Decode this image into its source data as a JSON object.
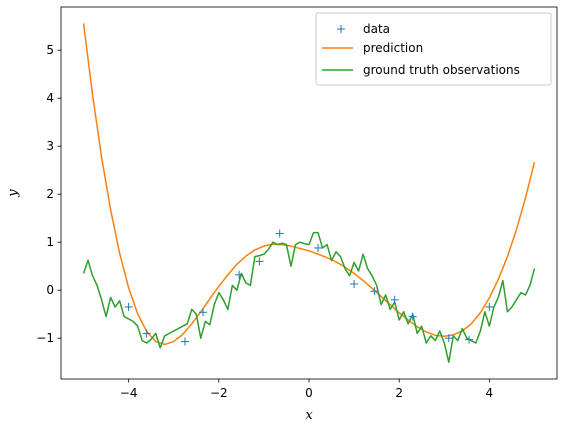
{
  "chart_data": {
    "type": "line",
    "xlabel": "x",
    "ylabel": "y",
    "xlim": [
      -5.5,
      5.5
    ],
    "ylim": [
      -1.85,
      5.9
    ],
    "xticks": [
      -4,
      -2,
      0,
      2,
      4
    ],
    "yticks": [
      -1,
      0,
      1,
      2,
      3,
      4,
      5
    ],
    "legend": {
      "placement": "top-right",
      "entries": [
        "data",
        "prediction",
        "ground truth observations"
      ]
    },
    "colors": {
      "data": "#1f77b4",
      "prediction": "#ff7f0e",
      "ground_truth": "#2ca02c"
    },
    "series": [
      {
        "name": "data",
        "style": "marker-plus",
        "x": [
          -4.0,
          -3.6,
          -2.75,
          -2.35,
          -1.55,
          -1.1,
          -0.65,
          0.2,
          1.0,
          1.45,
          1.9,
          2.3,
          3.1,
          3.55,
          4.0
        ],
        "y": [
          -0.35,
          -0.9,
          -1.07,
          -0.46,
          0.32,
          0.6,
          1.18,
          0.88,
          0.13,
          -0.02,
          -0.2,
          -0.55,
          -1.0,
          -1.03,
          -0.35
        ]
      },
      {
        "name": "prediction",
        "style": "line",
        "x": [
          -5.0,
          -4.8,
          -4.6,
          -4.4,
          -4.2,
          -4.0,
          -3.8,
          -3.6,
          -3.4,
          -3.2,
          -3.0,
          -2.8,
          -2.6,
          -2.4,
          -2.2,
          -2.0,
          -1.8,
          -1.6,
          -1.4,
          -1.2,
          -1.0,
          -0.8,
          -0.6,
          -0.4,
          -0.2,
          0.0,
          0.2,
          0.4,
          0.6,
          0.8,
          1.0,
          1.2,
          1.4,
          1.6,
          1.8,
          2.0,
          2.2,
          2.4,
          2.6,
          2.8,
          3.0,
          3.2,
          3.4,
          3.6,
          3.8,
          4.0,
          4.2,
          4.4,
          4.6,
          4.8,
          5.0
        ],
        "y": [
          5.56,
          4.07,
          2.77,
          1.68,
          0.77,
          0.05,
          -0.49,
          -0.86,
          -1.07,
          -1.13,
          -1.07,
          -0.92,
          -0.7,
          -0.45,
          -0.18,
          0.08,
          0.32,
          0.54,
          0.71,
          0.84,
          0.92,
          0.96,
          0.95,
          0.92,
          0.87,
          0.82,
          0.75,
          0.68,
          0.59,
          0.48,
          0.35,
          0.2,
          0.04,
          -0.13,
          -0.3,
          -0.47,
          -0.62,
          -0.76,
          -0.87,
          -0.94,
          -0.96,
          -0.93,
          -0.85,
          -0.7,
          -0.47,
          -0.16,
          0.23,
          0.7,
          1.26,
          1.92,
          2.67
        ]
      },
      {
        "name": "ground truth observations",
        "style": "line",
        "x": [
          -5.0,
          -4.9,
          -4.8,
          -4.7,
          -4.6,
          -4.5,
          -4.4,
          -4.3,
          -4.2,
          -4.1,
          -4.0,
          -3.9,
          -3.8,
          -3.7,
          -3.6,
          -3.5,
          -3.4,
          -3.3,
          -3.2,
          -3.1,
          -3.0,
          -2.9,
          -2.8,
          -2.7,
          -2.6,
          -2.5,
          -2.4,
          -2.3,
          -2.2,
          -2.1,
          -2.0,
          -1.9,
          -1.8,
          -1.7,
          -1.6,
          -1.5,
          -1.4,
          -1.3,
          -1.2,
          -1.1,
          -1.0,
          -0.9,
          -0.8,
          -0.7,
          -0.6,
          -0.5,
          -0.4,
          -0.3,
          -0.2,
          -0.1,
          0.0,
          0.1,
          0.2,
          0.3,
          0.4,
          0.5,
          0.6,
          0.7,
          0.8,
          0.9,
          1.0,
          1.1,
          1.2,
          1.3,
          1.4,
          1.5,
          1.6,
          1.7,
          1.8,
          1.9,
          2.0,
          2.1,
          2.2,
          2.3,
          2.4,
          2.5,
          2.6,
          2.7,
          2.8,
          2.9,
          3.0,
          3.1,
          3.2,
          3.3,
          3.4,
          3.5,
          3.6,
          3.7,
          3.8,
          3.9,
          4.0,
          4.1,
          4.2,
          4.3,
          4.4,
          4.5,
          4.6,
          4.7,
          4.8,
          4.9,
          5.0
        ],
        "y": [
          0.35,
          0.62,
          0.3,
          0.1,
          -0.2,
          -0.55,
          -0.15,
          -0.35,
          -0.22,
          -0.55,
          -0.6,
          -0.65,
          -0.75,
          -1.05,
          -1.1,
          -1.02,
          -0.9,
          -1.2,
          -0.95,
          -0.9,
          -0.85,
          -0.8,
          -0.75,
          -0.7,
          -0.4,
          -0.5,
          -1.0,
          -0.65,
          -0.72,
          -0.3,
          -0.05,
          -0.2,
          -0.4,
          0.1,
          0.0,
          0.35,
          0.15,
          0.1,
          0.7,
          0.72,
          0.75,
          0.85,
          1.0,
          0.95,
          0.98,
          0.95,
          0.5,
          0.95,
          1.0,
          0.97,
          0.95,
          1.2,
          1.2,
          0.88,
          0.95,
          0.62,
          0.8,
          0.7,
          0.45,
          0.3,
          0.58,
          0.4,
          0.75,
          0.45,
          0.3,
          0.1,
          -0.3,
          -0.1,
          -0.4,
          -0.25,
          -0.62,
          -0.45,
          -0.7,
          -0.5,
          -0.9,
          -0.75,
          -1.1,
          -0.95,
          -1.05,
          -0.85,
          -1.1,
          -1.5,
          -0.95,
          -1.05,
          -0.8,
          -1.0,
          -1.05,
          -1.1,
          -0.85,
          -0.45,
          -0.75,
          -0.35,
          -0.15,
          0.2,
          -0.45,
          -0.35,
          -0.2,
          -0.05,
          -0.1,
          0.1,
          0.45
        ]
      }
    ]
  }
}
